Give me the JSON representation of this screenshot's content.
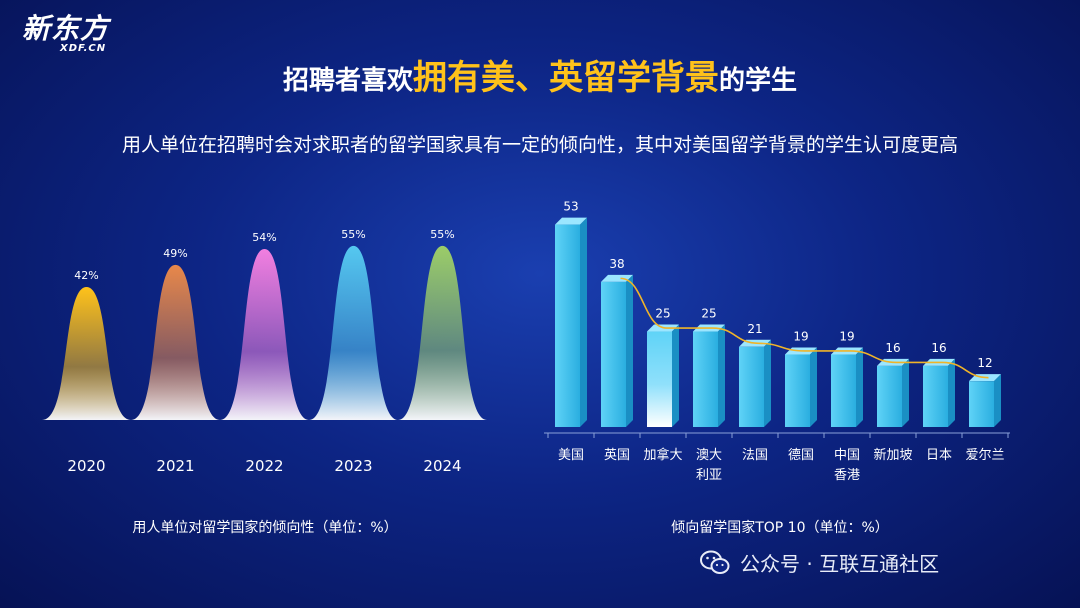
{
  "brand": {
    "name": "新东方",
    "domain": "XDF.CN"
  },
  "title": {
    "prefix": "招聘者喜欢",
    "highlight": "拥有美、英留学背景",
    "suffix": "的学生"
  },
  "subtitle": "用人单位在招聘时会对求职者的留学国家具有一定的倾向性，其中对美国留学背景的学生认可度更高",
  "chart_data": [
    {
      "type": "area",
      "categories": [
        "2020",
        "2021",
        "2022",
        "2023",
        "2024"
      ],
      "values": [
        42,
        49,
        54,
        55,
        55
      ],
      "value_labels": [
        "42%",
        "49%",
        "54%",
        "55%",
        "55%"
      ],
      "colors": [
        "#ffc21a",
        "#e8884a",
        "#f27fe0",
        "#55c8f0",
        "#9ccd68"
      ],
      "title": "用人单位对留学国家的倾向性（单位：%）",
      "ylim": [
        0,
        60
      ]
    },
    {
      "type": "bar",
      "categories": [
        "美国",
        "英国",
        "加拿大",
        "澳大利亚",
        "法国",
        "德国",
        "中国香港",
        "新加坡",
        "日本",
        "爱尔兰"
      ],
      "category_lines": [
        [
          "美国"
        ],
        [
          "英国"
        ],
        [
          "加拿大"
        ],
        [
          "澳大",
          "利亚"
        ],
        [
          "法国"
        ],
        [
          "德国"
        ],
        [
          "中国",
          "香港"
        ],
        [
          "新加坡"
        ],
        [
          "日本"
        ],
        [
          "爱尔兰"
        ]
      ],
      "values": [
        53,
        38,
        25,
        25,
        21,
        19,
        19,
        16,
        16,
        12
      ],
      "title": "倾向留学国家TOP 10（单位：%）",
      "ylim": [
        0,
        60
      ],
      "trendline": true,
      "bar_color": "#41c6f2",
      "trend_color": "#f0b429"
    }
  ],
  "footer": {
    "text": "公众号 · 互联互通社区"
  }
}
